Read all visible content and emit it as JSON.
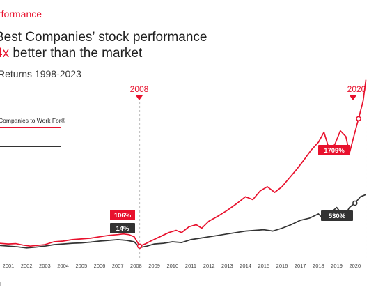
{
  "header": {
    "kicker": "rformance",
    "title_line1": "Best Companies’ stock performance",
    "title_line2_accent": "4x",
    "title_line2_rest": " better than the market",
    "subtitle": "Returns 1998-2023"
  },
  "legend": {
    "best_companies_label": "Companies to Work For®",
    "market_label": ""
  },
  "colors": {
    "best": "#e8112d",
    "market": "#333333",
    "text": "#1f1f1f",
    "grid": "#bbbbbb"
  },
  "annotations": {
    "marker_2008": "2008",
    "marker_2020": "2020",
    "label_best_2008": "106%",
    "label_market_2008": "14%",
    "label_best_2020": "1709%",
    "label_market_2020": "530%"
  },
  "footer": {
    "fragment": "ll"
  },
  "chart_data": {
    "type": "line",
    "title": "Best Companies’ stock performance 4x better than the market",
    "subtitle": "Returns 1998-2023",
    "x_ticks": [
      "2001",
      "2002",
      "2003",
      "2004",
      "2005",
      "2006",
      "2007",
      "2008",
      "2009",
      "2010",
      "2011",
      "2012",
      "2013",
      "2014",
      "2015",
      "2016",
      "2017",
      "2018",
      "2019",
      "2020"
    ],
    "ylabel": "",
    "unit": "%",
    "ylim": [
      -100,
      2400
    ],
    "series": [
      {
        "name": "Companies to Work For®",
        "points": [
          [
            2000.5,
            -30
          ],
          [
            2001.0,
            -40
          ],
          [
            2001.4,
            -35
          ],
          [
            2001.8,
            -55
          ],
          [
            2002.2,
            -70
          ],
          [
            2002.6,
            -60
          ],
          [
            2003.0,
            -50
          ],
          [
            2003.5,
            -10
          ],
          [
            2004.0,
            0
          ],
          [
            2004.5,
            20
          ],
          [
            2005.0,
            30
          ],
          [
            2005.5,
            40
          ],
          [
            2006.0,
            60
          ],
          [
            2006.5,
            80
          ],
          [
            2007.0,
            90
          ],
          [
            2007.3,
            100
          ],
          [
            2007.6,
            90
          ],
          [
            2007.9,
            60
          ],
          [
            2008.2,
            -70
          ],
          [
            2008.5,
            -40
          ],
          [
            2008.8,
            0
          ],
          [
            2009.3,
            60
          ],
          [
            2009.8,
            120
          ],
          [
            2010.2,
            150
          ],
          [
            2010.5,
            120
          ],
          [
            2010.9,
            200
          ],
          [
            2011.3,
            230
          ],
          [
            2011.6,
            180
          ],
          [
            2012.0,
            280
          ],
          [
            2012.5,
            350
          ],
          [
            2013.0,
            430
          ],
          [
            2013.5,
            520
          ],
          [
            2014.0,
            620
          ],
          [
            2014.4,
            580
          ],
          [
            2014.8,
            700
          ],
          [
            2015.2,
            760
          ],
          [
            2015.6,
            680
          ],
          [
            2016.0,
            760
          ],
          [
            2016.4,
            880
          ],
          [
            2016.8,
            1000
          ],
          [
            2017.2,
            1130
          ],
          [
            2017.6,
            1270
          ],
          [
            2018.0,
            1380
          ],
          [
            2018.3,
            1520
          ],
          [
            2018.6,
            1270
          ],
          [
            2018.9,
            1350
          ],
          [
            2019.2,
            1540
          ],
          [
            2019.5,
            1460
          ],
          [
            2019.7,
            1230
          ],
          [
            2020.0,
            1520
          ],
          [
            2020.2,
            1709
          ],
          [
            2020.45,
            1960
          ],
          [
            2020.6,
            2250
          ]
        ]
      },
      {
        "name": "",
        "points": [
          [
            2000.5,
            -60
          ],
          [
            2001.0,
            -70
          ],
          [
            2001.5,
            -80
          ],
          [
            2002.0,
            -95
          ],
          [
            2002.5,
            -85
          ],
          [
            2003.0,
            -70
          ],
          [
            2003.5,
            -50
          ],
          [
            2004.0,
            -40
          ],
          [
            2004.5,
            -30
          ],
          [
            2005.0,
            -25
          ],
          [
            2005.5,
            -15
          ],
          [
            2006.0,
            0
          ],
          [
            2006.5,
            10
          ],
          [
            2007.0,
            20
          ],
          [
            2007.5,
            10
          ],
          [
            2007.9,
            -10
          ],
          [
            2008.2,
            -90
          ],
          [
            2008.6,
            -70
          ],
          [
            2009.0,
            -40
          ],
          [
            2009.5,
            -30
          ],
          [
            2010.0,
            -10
          ],
          [
            2010.5,
            -20
          ],
          [
            2011.0,
            20
          ],
          [
            2011.5,
            40
          ],
          [
            2012.0,
            60
          ],
          [
            2012.5,
            80
          ],
          [
            2013.0,
            100
          ],
          [
            2013.5,
            120
          ],
          [
            2014.0,
            140
          ],
          [
            2014.5,
            150
          ],
          [
            2015.0,
            160
          ],
          [
            2015.5,
            140
          ],
          [
            2016.0,
            180
          ],
          [
            2016.5,
            230
          ],
          [
            2017.0,
            290
          ],
          [
            2017.5,
            320
          ],
          [
            2018.0,
            380
          ],
          [
            2018.3,
            300
          ],
          [
            2018.6,
            380
          ],
          [
            2019.0,
            470
          ],
          [
            2019.4,
            340
          ],
          [
            2019.7,
            470
          ],
          [
            2020.0,
            530
          ],
          [
            2020.3,
            620
          ],
          [
            2020.6,
            650
          ]
        ]
      }
    ]
  }
}
